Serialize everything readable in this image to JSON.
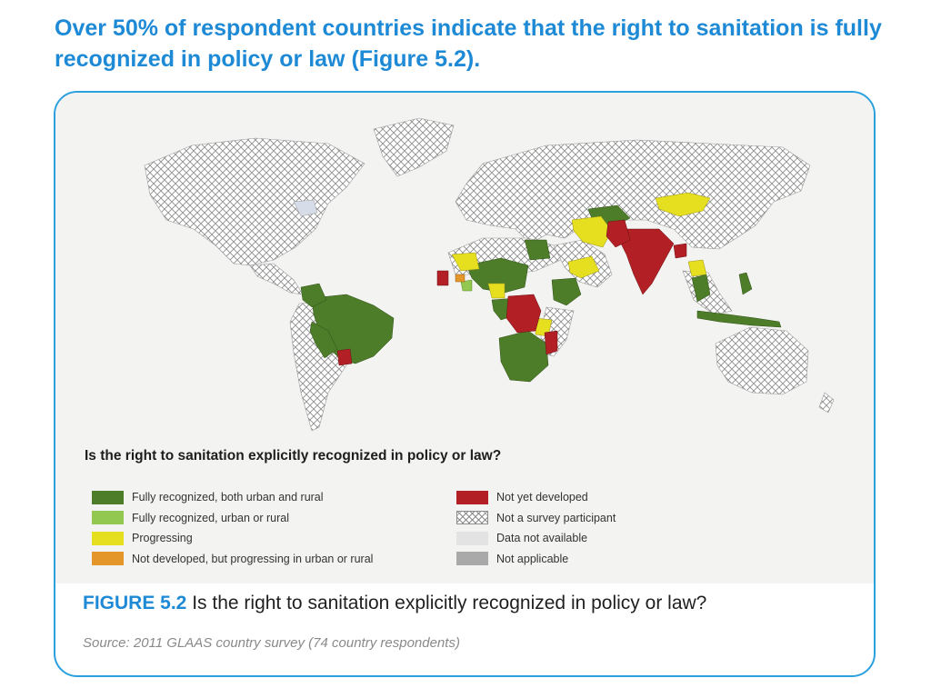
{
  "title": "Over 50% of respondent countries indicate that the right to sanitation is fully recognized in policy or law (Figure 5.2).",
  "question": "Is the right to sanitation explicitly recognized in policy or law?",
  "legend": [
    {
      "label": "Fully recognized, both urban and rural",
      "color": "#4e7d2a",
      "icon": "solid-swatch"
    },
    {
      "label": "Fully recognized, urban or rural",
      "color": "#92c84f",
      "icon": "solid-swatch"
    },
    {
      "label": "Progressing",
      "color": "#e6df1f",
      "icon": "solid-swatch"
    },
    {
      "label": "Not developed, but progressing in urban or rural",
      "color": "#e4962a",
      "icon": "solid-swatch"
    },
    {
      "label": "Not yet developed",
      "color": "#b21f24",
      "icon": "solid-swatch"
    },
    {
      "label": "Not a survey participant",
      "color": "#ffffff",
      "icon": "crosshatch-swatch"
    },
    {
      "label": "Data not available",
      "color": "#e3e3e3",
      "icon": "solid-swatch"
    },
    {
      "label": "Not applicable",
      "color": "#a9a9a9",
      "icon": "solid-swatch"
    }
  ],
  "figure_label": "FIGURE 5.2",
  "figure_caption": "Is the right to sanitation explicitly recognized in policy or law?",
  "source": "Source: 2011 GLAAS country survey (74 country respondents)",
  "colors": {
    "accent": "#1e8ad6",
    "frame": "#2aa0df",
    "full_both": "#4e7d2a",
    "not_yet": "#b21f24",
    "progressing": "#e6df1f"
  }
}
